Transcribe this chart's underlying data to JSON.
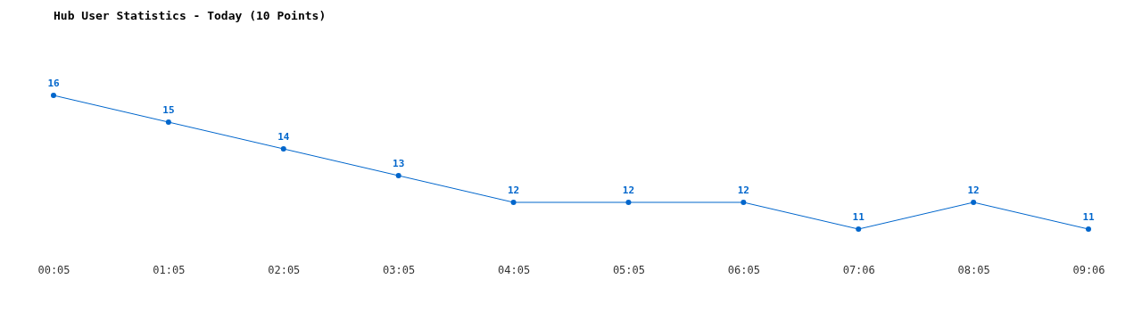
{
  "chart_data": {
    "type": "line",
    "title": "Hub User Statistics - Today (10 Points)",
    "categories": [
      "00:05",
      "01:05",
      "02:05",
      "03:05",
      "04:05",
      "05:05",
      "06:05",
      "07:06",
      "08:05",
      "09:06"
    ],
    "series": [
      {
        "color": "#0066cc",
        "values": [
          16,
          15,
          14,
          13,
          12,
          12,
          12,
          11,
          12,
          11
        ]
      }
    ],
    "data_labels": true,
    "marker": "circle",
    "line_style": "solid",
    "grid": false,
    "legend": false,
    "tick_labels": "x"
  }
}
